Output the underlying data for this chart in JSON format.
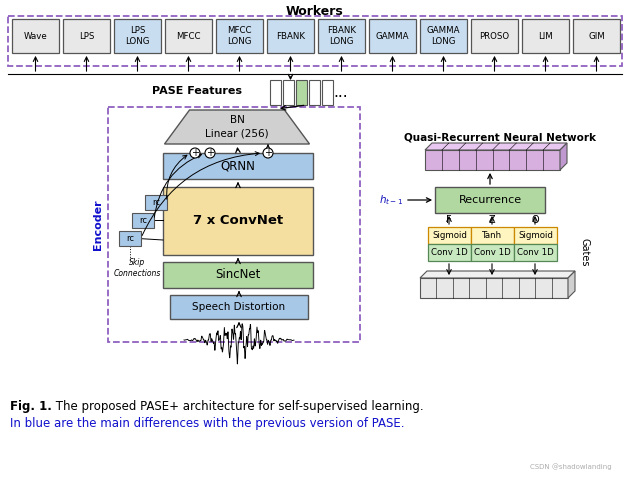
{
  "title": "Workers",
  "worker_labels": [
    "Wave",
    "LPS",
    "LPS\nLONG",
    "MFCC",
    "MFCC\nLONG",
    "FBANK",
    "FBANK\nLONG",
    "GAMMA",
    "GAMMA\nLONG",
    "PROSO",
    "LIM",
    "GIM"
  ],
  "worker_blue": [
    "LPS\nLONG",
    "MFCC\nLONG",
    "FBANK",
    "FBANK\nLONG",
    "GAMMA",
    "GAMMA\nLONG"
  ],
  "fig_caption_bold": "Fig. 1.",
  "fig_caption_rest": " The proposed PASE+ architecture for self-supervised learning.",
  "fig_caption_line2": "In blue are the main differences with the previous version of PASE.",
  "bg_color": "#ffffff",
  "worker_box_blue": "#c8ddf0",
  "worker_box_gray": "#e8e8e8",
  "dashed_border_color": "#9060c0",
  "encoder_label": "Encoder",
  "sincnet_color": "#b0d8a0",
  "convnet_color": "#f5dfa0",
  "qrnn_color": "#a8c8e8",
  "bn_color": "#d0d0d0",
  "speech_distortion_color": "#a8c8e8",
  "recurrence_color": "#b0d8a0",
  "gate_top_color": "#fef5c0",
  "gate_bot_color": "#c8e8c0",
  "rc_color": "#a8c8e8",
  "purple_bar_color": "#d8b0e0",
  "purple_bar_top": "#e8c8f0",
  "purple_bar_right": "#c098d0",
  "gray_bar_face": "#e8e8e8",
  "gray_bar_top": "#f0f0f0",
  "gray_bar_right": "#d0d0d0",
  "pase_green": "#b0d8a0",
  "caption_blue": "#1010cc",
  "watermark": "CSDN @shadowlanding"
}
